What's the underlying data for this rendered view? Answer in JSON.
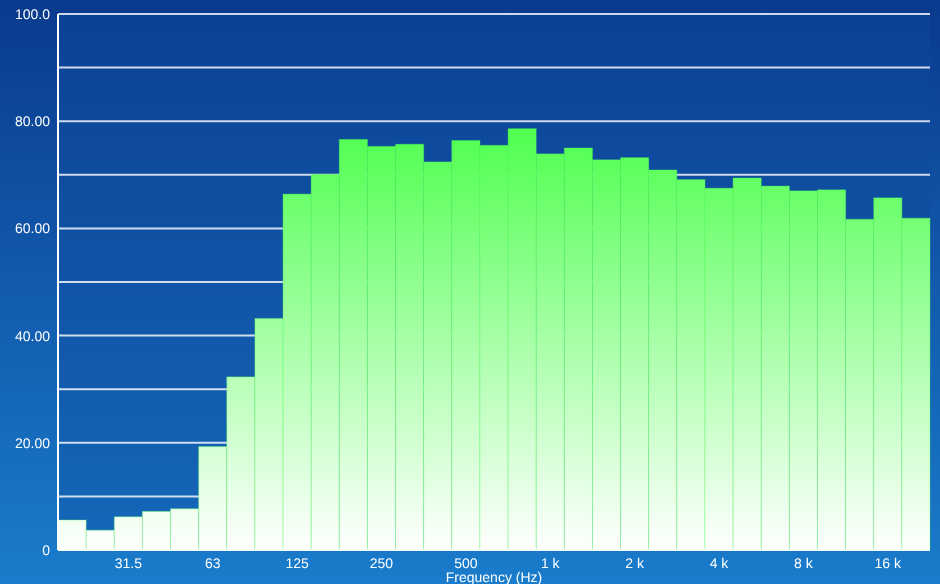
{
  "chart_data": {
    "type": "bar",
    "xlabel": "Frequency (Hz)",
    "categories": [
      null,
      null,
      "31.5",
      null,
      null,
      "63",
      null,
      null,
      "125",
      null,
      null,
      "250",
      null,
      null,
      "500",
      null,
      null,
      "1 k",
      null,
      null,
      "2 k",
      null,
      null,
      "4 k",
      null,
      null,
      "8 k",
      null,
      null,
      "16 k",
      null
    ],
    "values": [
      5.6,
      3.7,
      6.2,
      7.2,
      7.7,
      19.3,
      32.3,
      43.2,
      66.4,
      70.1,
      76.6,
      75.3,
      75.7,
      72.4,
      76.4,
      75.5,
      78.6,
      73.9,
      75.0,
      72.8,
      73.2,
      70.9,
      69.1,
      67.5,
      69.4,
      67.9,
      67.0,
      67.2,
      61.7,
      65.7,
      61.9
    ],
    "color": "#4cff4c",
    "ylim": [
      0,
      100
    ],
    "yticks": [
      {
        "value": 0,
        "label": "0"
      },
      {
        "value": 10,
        "label": null
      },
      {
        "value": 20,
        "label": "20.00"
      },
      {
        "value": 30,
        "label": null
      },
      {
        "value": 40,
        "label": "40.00"
      },
      {
        "value": 50,
        "label": null
      },
      {
        "value": 60,
        "label": "60.00"
      },
      {
        "value": 70,
        "label": null
      },
      {
        "value": 80,
        "label": "80.00"
      },
      {
        "value": 90,
        "label": null
      },
      {
        "value": 100,
        "label": "100.0"
      }
    ],
    "grid": "y"
  }
}
